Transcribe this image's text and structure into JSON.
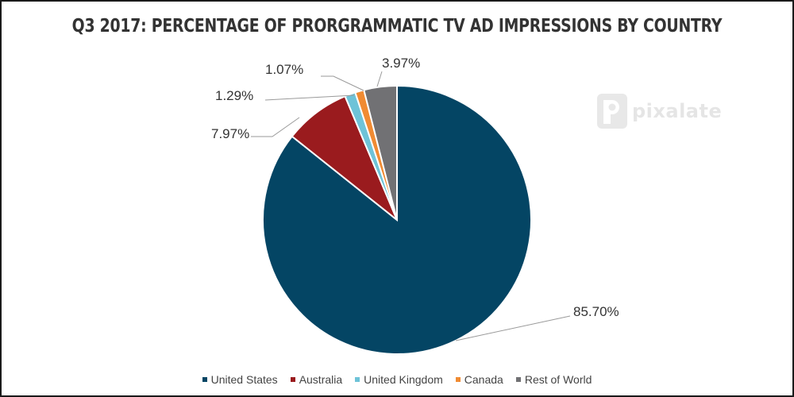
{
  "chart_data": {
    "type": "pie",
    "title": "Q3 2017: PERCENTAGE OF PRORGRAMMATIC TV AD IMPRESSIONS BY COUNTRY",
    "categories": [
      "United States",
      "Australia",
      "United Kingdom",
      "Canada",
      "Rest of World"
    ],
    "values": [
      85.7,
      7.97,
      1.29,
      1.07,
      3.97
    ],
    "value_labels": [
      "85.70%",
      "7.97%",
      "1.29%",
      "1.07%",
      "3.97%"
    ],
    "colors": [
      "#044564",
      "#9a1b1e",
      "#6ec3d8",
      "#f08b33",
      "#717174"
    ],
    "legend_position": "bottom",
    "start": "12 o'clock",
    "direction": "clockwise"
  },
  "watermark": {
    "text": "pixalate",
    "icon": "pixalate-logo-icon"
  }
}
